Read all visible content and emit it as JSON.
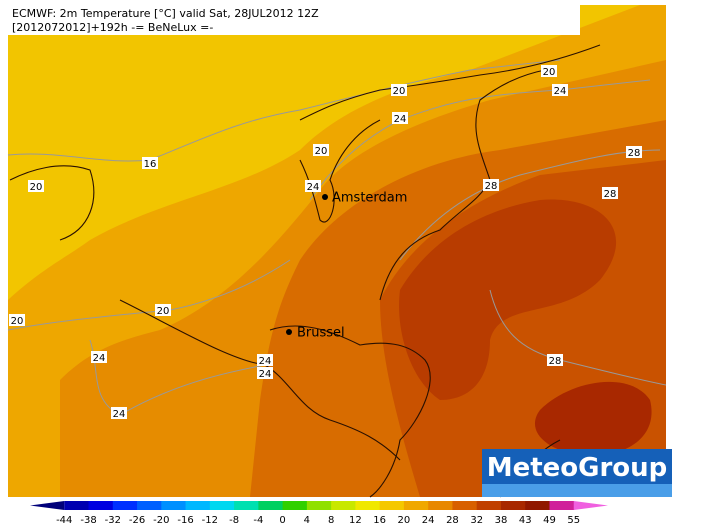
{
  "header": {
    "line1": "ECMWF: 2m Temperature [°C] valid Sat, 28JUL2012 12Z",
    "line2": "[2012072012]+192h -= BeNeLux =-"
  },
  "cities": [
    "Amsterdam",
    "Brussel"
  ],
  "contour_labels": [
    16,
    20,
    20,
    20,
    24,
    24,
    20,
    24,
    28,
    28,
    28,
    20,
    20,
    24,
    24,
    24,
    24,
    28
  ],
  "logo": "MeteoGroup",
  "legend": {
    "ticks": [
      -44,
      -38,
      -32,
      -26,
      -20,
      -16,
      -12,
      -8,
      -4,
      0,
      4,
      8,
      12,
      16,
      20,
      24,
      28,
      32,
      38,
      43,
      49,
      55
    ],
    "colors": [
      "#00007a",
      "#0000b0",
      "#0000e0",
      "#0030ff",
      "#0060ff",
      "#0090ff",
      "#00b8ff",
      "#00d8f0",
      "#00e0b0",
      "#00d060",
      "#30d000",
      "#90e000",
      "#c8e800",
      "#f0e800",
      "#f5c800",
      "#f0a800",
      "#e88800",
      "#d86000",
      "#c04000",
      "#a82800",
      "#901800",
      "#d0209a",
      "#f060e0"
    ]
  }
}
